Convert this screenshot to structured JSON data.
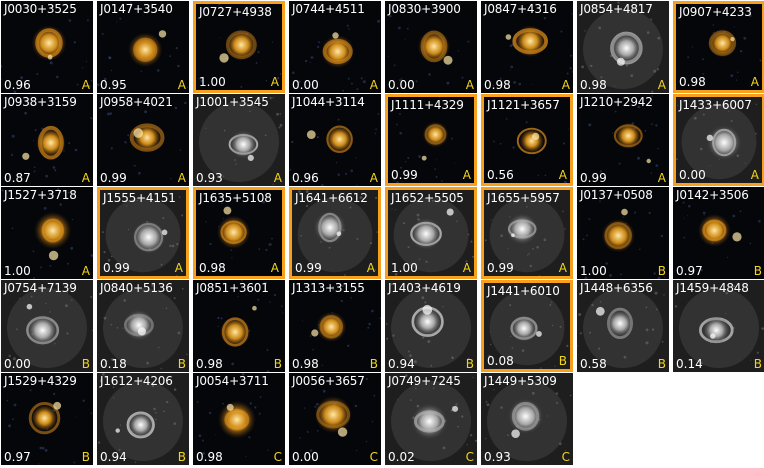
{
  "colors": {
    "highlight_border": "#f6a01d",
    "grade_text": "#f5d51a",
    "label_text": "#ffffff",
    "sky": "#050608"
  },
  "tiles": [
    {
      "name": "J0030+3525",
      "score": "0.96",
      "grade": "A",
      "highlight": false,
      "style": "color"
    },
    {
      "name": "J0147+3540",
      "score": "0.95",
      "grade": "A",
      "highlight": false,
      "style": "color"
    },
    {
      "name": "J0727+4938",
      "score": "1.00",
      "grade": "A",
      "highlight": true,
      "style": "color"
    },
    {
      "name": "J0744+4511",
      "score": "0.00",
      "grade": "A",
      "highlight": false,
      "style": "color"
    },
    {
      "name": "J0830+3900",
      "score": "0.00",
      "grade": "A",
      "highlight": false,
      "style": "color"
    },
    {
      "name": "J0847+4316",
      "score": "0.98",
      "grade": "A",
      "highlight": false,
      "style": "color"
    },
    {
      "name": "J0854+4817",
      "score": "0.98",
      "grade": "A",
      "highlight": false,
      "style": "gray"
    },
    {
      "name": "J0907+4233",
      "score": "0.98",
      "grade": "A",
      "highlight": true,
      "style": "color"
    },
    {
      "name": "J0938+3159",
      "score": "0.87",
      "grade": "A",
      "highlight": false,
      "style": "color"
    },
    {
      "name": "J0958+4021",
      "score": "0.99",
      "grade": "A",
      "highlight": false,
      "style": "color"
    },
    {
      "name": "J1001+3545",
      "score": "0.93",
      "grade": "A",
      "highlight": false,
      "style": "gray"
    },
    {
      "name": "J1044+3114",
      "score": "0.96",
      "grade": "A",
      "highlight": false,
      "style": "color"
    },
    {
      "name": "J1111+4329",
      "score": "0.99",
      "grade": "A",
      "highlight": true,
      "style": "color"
    },
    {
      "name": "J1121+3657",
      "score": "0.56",
      "grade": "A",
      "highlight": true,
      "style": "color"
    },
    {
      "name": "J1210+2942",
      "score": "0.99",
      "grade": "A",
      "highlight": false,
      "style": "color"
    },
    {
      "name": "J1433+6007",
      "score": "0.00",
      "grade": "A",
      "highlight": true,
      "style": "gray"
    },
    {
      "name": "J1527+3718",
      "score": "1.00",
      "grade": "A",
      "highlight": false,
      "style": "color"
    },
    {
      "name": "J1555+4151",
      "score": "0.99",
      "grade": "A",
      "highlight": true,
      "style": "gray"
    },
    {
      "name": "J1635+5108",
      "score": "0.98",
      "grade": "A",
      "highlight": true,
      "style": "color"
    },
    {
      "name": "J1641+6612",
      "score": "0.99",
      "grade": "A",
      "highlight": true,
      "style": "gray"
    },
    {
      "name": "J1652+5505",
      "score": "1.00",
      "grade": "A",
      "highlight": true,
      "style": "gray"
    },
    {
      "name": "J1655+5957",
      "score": "0.99",
      "grade": "A",
      "highlight": true,
      "style": "gray"
    },
    {
      "name": "J0137+0508",
      "score": "1.00",
      "grade": "B",
      "highlight": false,
      "style": "color"
    },
    {
      "name": "J0142+3506",
      "score": "0.97",
      "grade": "B",
      "highlight": false,
      "style": "color"
    },
    {
      "name": "J0754+7139",
      "score": "0.00",
      "grade": "B",
      "highlight": false,
      "style": "gray"
    },
    {
      "name": "J0840+5136",
      "score": "0.18",
      "grade": "B",
      "highlight": false,
      "style": "gray"
    },
    {
      "name": "J0851+3601",
      "score": "0.98",
      "grade": "B",
      "highlight": false,
      "style": "color"
    },
    {
      "name": "J1313+3155",
      "score": "0.98",
      "grade": "B",
      "highlight": false,
      "style": "color"
    },
    {
      "name": "J1403+4619",
      "score": "0.94",
      "grade": "B",
      "highlight": false,
      "style": "gray"
    },
    {
      "name": "J1441+6010",
      "score": "0.08",
      "grade": "B",
      "highlight": true,
      "style": "gray"
    },
    {
      "name": "J1448+6356",
      "score": "0.58",
      "grade": "B",
      "highlight": false,
      "style": "gray"
    },
    {
      "name": "J1459+4848",
      "score": "0.14",
      "grade": "B",
      "highlight": false,
      "style": "gray"
    },
    {
      "name": "J1529+4329",
      "score": "0.97",
      "grade": "B",
      "highlight": false,
      "style": "color"
    },
    {
      "name": "J1612+4206",
      "score": "0.94",
      "grade": "B",
      "highlight": false,
      "style": "gray"
    },
    {
      "name": "J0054+3711",
      "score": "0.98",
      "grade": "C",
      "highlight": false,
      "style": "color"
    },
    {
      "name": "J0056+3657",
      "score": "0.00",
      "grade": "C",
      "highlight": false,
      "style": "color"
    },
    {
      "name": "J0749+7245",
      "score": "0.02",
      "grade": "C",
      "highlight": false,
      "style": "gray"
    },
    {
      "name": "J1449+5309",
      "score": "0.93",
      "grade": "C",
      "highlight": false,
      "style": "gray"
    }
  ]
}
